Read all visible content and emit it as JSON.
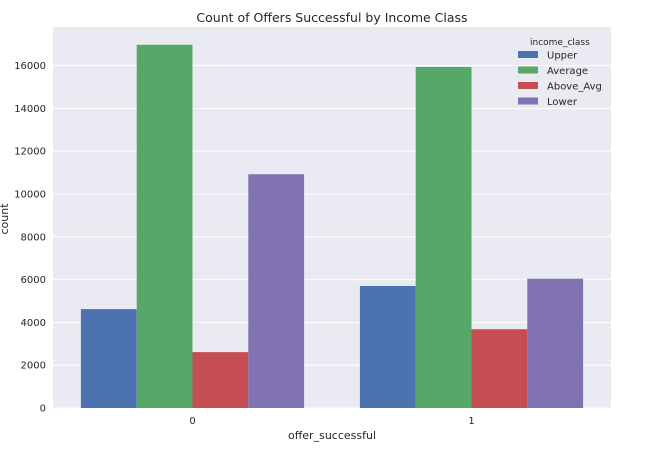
{
  "chart_data": {
    "type": "bar",
    "title": "Count of Offers Successful by Income Class",
    "xlabel": "offer_successful",
    "ylabel": "count",
    "categories": [
      "0",
      "1"
    ],
    "ylim": [
      0,
      17800
    ],
    "yticks": [
      0,
      2000,
      4000,
      6000,
      8000,
      10000,
      12000,
      14000,
      16000
    ],
    "grid": true,
    "legend_title": "income_class",
    "legend_position": "top-right",
    "series": [
      {
        "name": "Upper",
        "color": "#4c72b0",
        "values": [
          4620,
          5700
        ]
      },
      {
        "name": "Average",
        "color": "#55a868",
        "values": [
          16970,
          15930
        ]
      },
      {
        "name": "Above_Avg",
        "color": "#c44e52",
        "values": [
          2610,
          3680
        ]
      },
      {
        "name": "Lower",
        "color": "#8172b2",
        "values": [
          10920,
          6040
        ]
      }
    ]
  },
  "colors": {
    "plot_background": "#eaeaf2",
    "grid": "#ffffff"
  }
}
